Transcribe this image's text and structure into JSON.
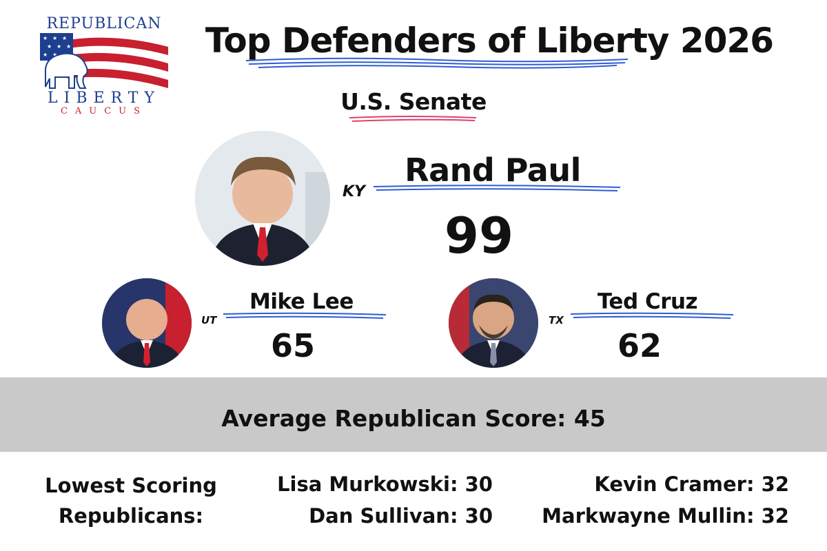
{
  "logo": {
    "line1": "REPUBLICAN",
    "line2": "LIBERTY",
    "line3": "CAUCUS"
  },
  "title": "Top Defenders of Liberty 2026",
  "subtitle": "U.S. Senate",
  "featured": {
    "name": "Rand Paul",
    "state": "KY",
    "score": "99"
  },
  "runners_up": [
    {
      "name": "Mike Lee",
      "state": "UT",
      "score": "65"
    },
    {
      "name": "Ted Cruz",
      "state": "TX",
      "score": "62"
    }
  ],
  "average": {
    "label": "Average Republican Score: 45"
  },
  "lowest": {
    "heading_line1": "Lowest Scoring",
    "heading_line2": "Republicans:",
    "items": [
      "Lisa Murkowski: 30",
      "Dan Sullivan: 30",
      "Kevin Cramer: 32",
      "Markwayne Mullin: 32"
    ]
  },
  "colors": {
    "navy": "#1d3f8f",
    "red": "#c8202f",
    "underline_blue": "#2f5bd6",
    "underline_red": "#e0406a",
    "band_gray": "#c9c9c9"
  }
}
